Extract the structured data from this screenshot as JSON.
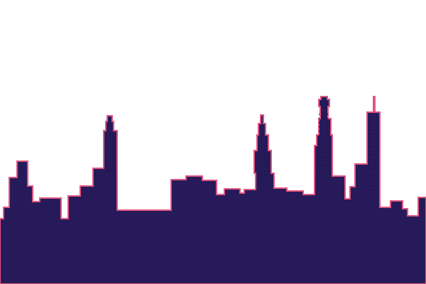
{
  "scene": {
    "background_color": "#ffffff",
    "skyline_fill": "#271a5a",
    "skyline_outline": "#e2567f",
    "window_color": "#1b1043"
  }
}
